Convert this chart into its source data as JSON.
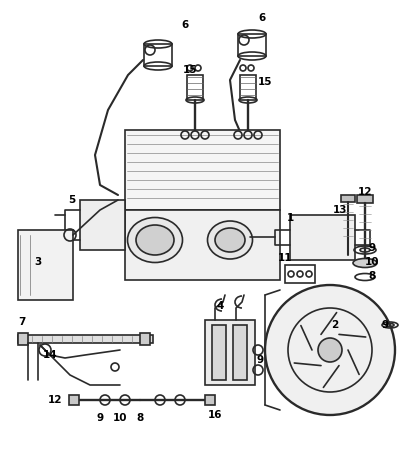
{
  "bg_color": "#ffffff",
  "line_color": "#2a2a2a",
  "label_color": "#000000",
  "lw": 1.2,
  "figsize": [
    4.01,
    4.75
  ],
  "dpi": 100
}
